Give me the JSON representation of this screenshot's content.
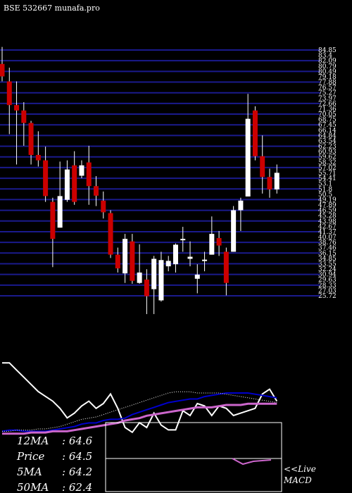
{
  "header": {
    "title": "BSE 532667 munafa.pro"
  },
  "colors": {
    "background": "#000000",
    "grid": "#1a1a8c",
    "bull": "#ffffff",
    "bear": "#cc0000",
    "text": "#ffffff",
    "ma_blue": "#0000cc",
    "ma_violet": "#cc66cc"
  },
  "chart_data": [
    {
      "type": "candlestick",
      "title": "BSE 532667 munafa.pro",
      "price_labels": [
        "84.85",
        "83.4",
        "82.09",
        "80.79",
        "80.49",
        "79.18",
        "77.88",
        "76.57",
        "75.27",
        "73.97",
        "72.66",
        "71.36",
        "70.05",
        "68.75",
        "67.45",
        "66.14",
        "64.84",
        "63.54",
        "62.23",
        "60.93",
        "59.62",
        "58.32",
        "57.02",
        "55.71",
        "54.41",
        "53.1",
        "51.8",
        "50.5",
        "49.19",
        "47.89",
        "46.59",
        "45.28",
        "43.98",
        "42.67",
        "41.37",
        "40.07",
        "38.76",
        "37.46",
        "36.15",
        "34.85",
        "33.55",
        "32.24",
        "30.94",
        "29.63",
        "28.33",
        "27.03",
        "25.72"
      ],
      "candles": [
        {
          "open": 80.8,
          "close": 77.8,
          "high": 84.9,
          "low": 76.6
        },
        {
          "open": 76.6,
          "close": 70.9,
          "high": 79.9,
          "low": 63.9
        },
        {
          "open": 70.9,
          "close": 69.6,
          "high": 76.6,
          "low": 56.6
        },
        {
          "open": 69.6,
          "close": 66.6,
          "high": 71.6,
          "low": 61.1
        },
        {
          "open": 66.6,
          "close": 58.9,
          "high": 67.1,
          "low": 56.6
        },
        {
          "open": 58.9,
          "close": 57.6,
          "high": 64.6,
          "low": 56.1
        },
        {
          "open": 57.6,
          "close": 49.0,
          "high": 60.9,
          "low": 47.6
        },
        {
          "open": 47.6,
          "close": 38.7,
          "high": 48.6,
          "low": 31.9
        },
        {
          "open": 41.4,
          "close": 49.0,
          "high": 57.3,
          "low": 41.4
        },
        {
          "open": 48.1,
          "close": 55.4,
          "high": 57.6,
          "low": 47.6
        },
        {
          "open": 56.4,
          "close": 47.6,
          "high": 59.8,
          "low": 46.9
        },
        {
          "open": 53.9,
          "close": 56.4,
          "high": 57.6,
          "low": 53.3
        },
        {
          "open": 57.1,
          "close": 51.4,
          "high": 61.1,
          "low": 46.9
        },
        {
          "open": 51.4,
          "close": 49.1,
          "high": 53.8,
          "low": 46.6
        },
        {
          "open": 47.9,
          "close": 45.1,
          "high": 50.1,
          "low": 43.6
        },
        {
          "open": 44.9,
          "close": 34.9,
          "high": 45.6,
          "low": 34.1
        },
        {
          "open": 34.9,
          "close": 31.6,
          "high": 36.6,
          "low": 30.6
        },
        {
          "open": 30.4,
          "close": 38.7,
          "high": 39.9,
          "low": 28.1
        },
        {
          "open": 38.1,
          "close": 28.6,
          "high": 39.9,
          "low": 27.9
        },
        {
          "open": 28.1,
          "close": 30.6,
          "high": 37.4,
          "low": 27.9
        },
        {
          "open": 28.9,
          "close": 24.9,
          "high": 31.4,
          "low": 20.6
        },
        {
          "open": 26.6,
          "close": 33.9,
          "high": 34.6,
          "low": 20.6
        },
        {
          "open": 23.9,
          "close": 33.6,
          "high": 35.6,
          "low": 23.6
        },
        {
          "open": 32.1,
          "close": 33.4,
          "high": 34.6,
          "low": 30.9
        },
        {
          "open": 32.6,
          "close": 37.3,
          "high": 37.6,
          "low": 30.6
        },
        {
          "open": 38.6,
          "close": 38.7,
          "high": 41.6,
          "low": 35.6
        },
        {
          "open": 33.9,
          "close": 34.4,
          "high": 38.1,
          "low": 32.1
        },
        {
          "open": 29.1,
          "close": 30.1,
          "high": 32.6,
          "low": 25.6
        },
        {
          "open": 33.4,
          "close": 33.7,
          "high": 35.6,
          "low": 30.9
        },
        {
          "open": 34.9,
          "close": 39.9,
          "high": 44.1,
          "low": 34.9
        },
        {
          "open": 38.9,
          "close": 37.1,
          "high": 40.6,
          "low": 34.6
        },
        {
          "open": 35.6,
          "close": 28.1,
          "high": 36.6,
          "low": 25.1
        },
        {
          "open": 35.6,
          "close": 45.6,
          "high": 46.6,
          "low": 35.6
        },
        {
          "open": 45.6,
          "close": 47.9,
          "high": 48.6,
          "low": 40.6
        },
        {
          "open": 48.9,
          "close": 67.6,
          "high": 73.6,
          "low": 48.9
        },
        {
          "open": 69.6,
          "close": 58.6,
          "high": 70.6,
          "low": 57.6
        },
        {
          "open": 58.6,
          "close": 53.6,
          "high": 63.6,
          "low": 49.6
        },
        {
          "open": 53.6,
          "close": 50.6,
          "high": 55.6,
          "low": 48.6
        },
        {
          "open": 50.6,
          "close": 54.6,
          "high": 56.6,
          "low": 49.6
        }
      ]
    },
    {
      "type": "line",
      "series": [
        {
          "name": "MACD",
          "values": [
            52.6,
            52.6,
            49.6,
            46.6,
            43.6,
            40.6,
            38.6,
            36.6,
            33.6,
            29.6,
            31.6,
            34.6,
            36.6,
            33.6,
            35.6,
            39.6,
            33.6,
            25.6,
            23.6,
            27.6,
            25.6,
            31.6,
            26.6,
            24.6,
            24.6,
            32.6,
            30.6,
            35.6,
            34.6,
            30.6,
            34.6,
            33.6,
            30.6,
            31.6,
            32.6,
            33.6,
            39.6,
            41.6,
            36.6
          ]
        }
      ]
    },
    {
      "type": "table",
      "rows": [
        {
          "label": "12MA",
          "value": "64.6"
        },
        {
          "label": "Price",
          "value": "64.5"
        },
        {
          "label": "5MA",
          "value": "64.2"
        },
        {
          "label": "50MA",
          "value": "62.4"
        }
      ]
    }
  ],
  "live_label": "<<Live",
  "macd_label": "MACD"
}
